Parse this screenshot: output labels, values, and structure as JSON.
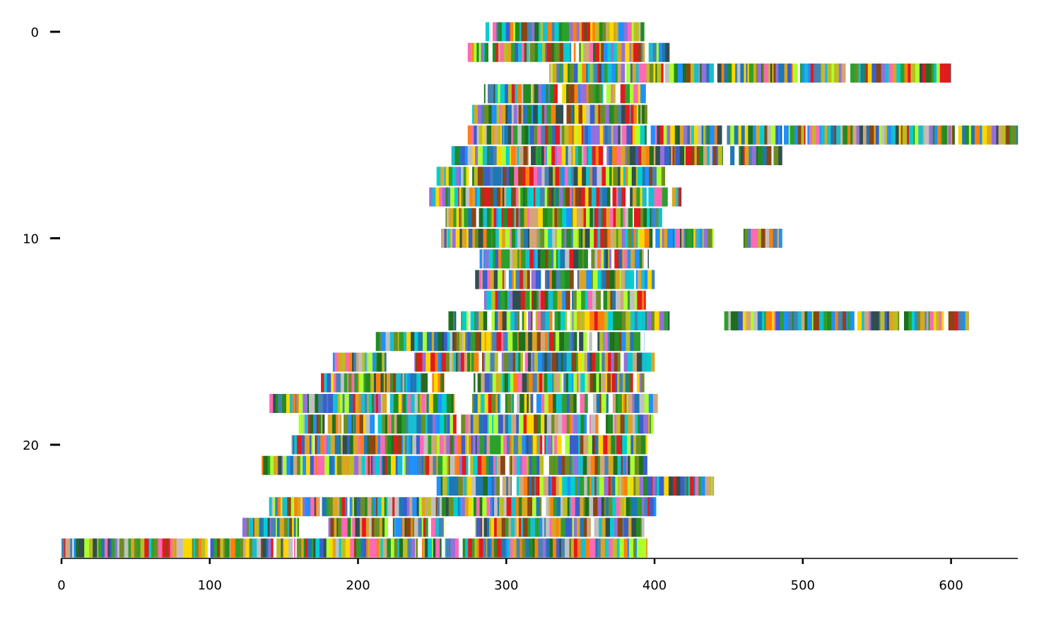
{
  "chart_data": {
    "type": "bar",
    "orientation": "horizontal-segments",
    "title": "",
    "xlabel": "",
    "ylabel": "",
    "xlim": [
      0,
      645
    ],
    "ylim": [
      25,
      -1
    ],
    "x_ticks": [
      0,
      100,
      200,
      300,
      400,
      500,
      600
    ],
    "y_ticks": [
      0,
      10,
      20
    ],
    "grid": false,
    "legend": "none",
    "palette": [
      "#e31a1c",
      "#1f77b4",
      "#2ca02c",
      "#1e6f1e",
      "#3a5fcd",
      "#ff7f0e",
      "#ffd700",
      "#00ced1",
      "#8b4513",
      "#9370db",
      "#17becf",
      "#bcbd22",
      "#d2a679",
      "#c0c0c0",
      "#1e90ff",
      "#ff69b4",
      "#6b8e23",
      "#2f4f4f",
      "#adff2f",
      "#228b22",
      "#4682b4",
      "#daa520",
      "#ffffff"
    ],
    "series": [
      {
        "row": 0,
        "spans": [
          [
            286,
            393
          ]
        ]
      },
      {
        "row": 1,
        "spans": [
          [
            274,
            410
          ]
        ]
      },
      {
        "row": 2,
        "spans": [
          [
            329,
            600
          ]
        ]
      },
      {
        "row": 3,
        "spans": [
          [
            285,
            394
          ]
        ]
      },
      {
        "row": 4,
        "spans": [
          [
            277,
            395
          ]
        ]
      },
      {
        "row": 5,
        "spans": [
          [
            274,
            645
          ]
        ]
      },
      {
        "row": 6,
        "spans": [
          [
            263,
            446
          ],
          [
            451,
            486
          ]
        ]
      },
      {
        "row": 7,
        "spans": [
          [
            253,
            407
          ]
        ]
      },
      {
        "row": 8,
        "spans": [
          [
            248,
            418
          ]
        ]
      },
      {
        "row": 9,
        "spans": [
          [
            259,
            405
          ]
        ]
      },
      {
        "row": 10,
        "spans": [
          [
            256,
            441
          ],
          [
            460,
            486
          ]
        ]
      },
      {
        "row": 11,
        "spans": [
          [
            282,
            396
          ]
        ]
      },
      {
        "row": 12,
        "spans": [
          [
            279,
            400
          ]
        ]
      },
      {
        "row": 13,
        "spans": [
          [
            285,
            394
          ]
        ]
      },
      {
        "row": 14,
        "spans": [
          [
            261,
            410
          ],
          [
            447,
            612
          ]
        ]
      },
      {
        "row": 15,
        "spans": [
          [
            212,
            393
          ]
        ]
      },
      {
        "row": 16,
        "spans": [
          [
            183,
            219
          ],
          [
            238,
            400
          ]
        ]
      },
      {
        "row": 17,
        "spans": [
          [
            175,
            258
          ],
          [
            278,
            393
          ]
        ]
      },
      {
        "row": 18,
        "spans": [
          [
            139,
            265
          ],
          [
            277,
            404
          ]
        ]
      },
      {
        "row": 19,
        "spans": [
          [
            160,
            399
          ]
        ]
      },
      {
        "row": 20,
        "spans": [
          [
            155,
            395
          ]
        ]
      },
      {
        "row": 21,
        "spans": [
          [
            135,
            395
          ]
        ]
      },
      {
        "row": 22,
        "spans": [
          [
            253,
            440
          ]
        ]
      },
      {
        "row": 23,
        "spans": [
          [
            140,
            401
          ]
        ]
      },
      {
        "row": 24,
        "spans": [
          [
            122,
            160
          ],
          [
            180,
            258
          ],
          [
            276,
            393
          ]
        ]
      },
      {
        "row": 25,
        "spans": [
          [
            0,
            395
          ]
        ]
      }
    ]
  }
}
